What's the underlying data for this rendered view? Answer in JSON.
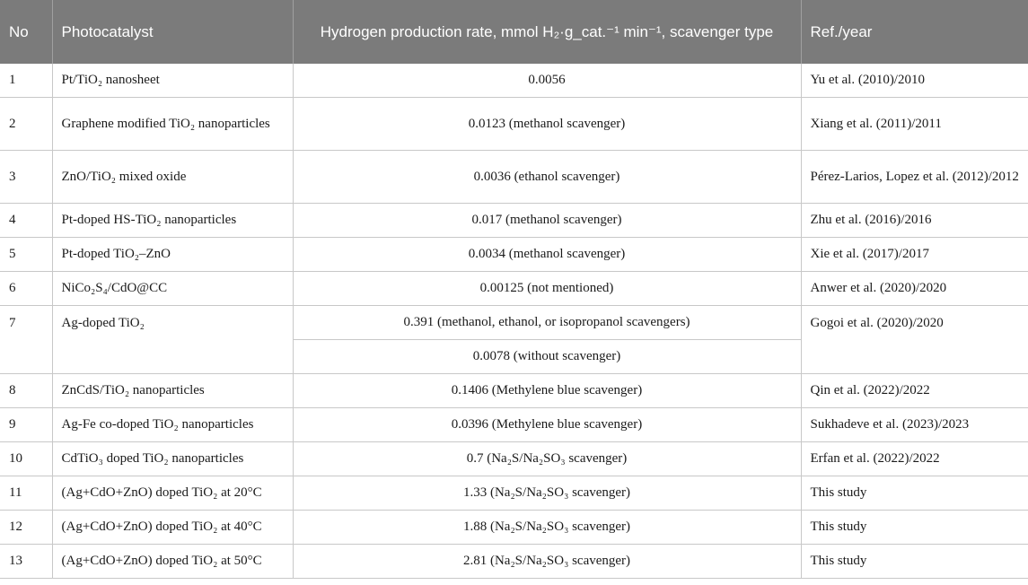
{
  "header": {
    "no": "No",
    "photocatalyst": "Photocatalyst",
    "rate": "Hydrogen production rate, mmol H₂·g_cat.⁻¹ min⁻¹, scavenger type",
    "ref": "Ref./year"
  },
  "rows": [
    {
      "no": "1",
      "photocatalyst": "Pt/TiO₂ nanosheet",
      "rate": "0.0056",
      "ref": "Yu et al. (2010)/2010"
    },
    {
      "no": "2",
      "photocatalyst": "Graphene modified TiO₂ nanoparticles",
      "rate": "0.0123 (methanol scavenger)",
      "ref": "Xiang et al. (2011)/2011"
    },
    {
      "no": "3",
      "photocatalyst": "ZnO/TiO₂ mixed oxide",
      "rate": "0.0036 (ethanol scavenger)",
      "ref": "Pérez-Larios, Lopez et al. (2012)/2012"
    },
    {
      "no": "4",
      "photocatalyst": "Pt-doped HS-TiO₂ nanoparticles",
      "rate": "0.017 (methanol scavenger)",
      "ref": "Zhu et al. (2016)/2016"
    },
    {
      "no": "5",
      "photocatalyst": "Pt-doped TiO₂–ZnO",
      "rate": "0.0034 (methanol scavenger)",
      "ref": "Xie et al. (2017)/2017"
    },
    {
      "no": "6",
      "photocatalyst": "NiCo₂S₄/CdO@CC",
      "rate": "0.00125 (not mentioned)",
      "ref": "Anwer et al. (2020)/2020"
    },
    {
      "no": "7",
      "photocatalyst": "Ag-doped TiO₂",
      "rate": "0.391 (methanol, ethanol, or isopropanol scavengers)",
      "rate2": "0.0078 (without scavenger)",
      "ref": "Gogoi et al. (2020)/2020"
    },
    {
      "no": "8",
      "photocatalyst": "ZnCdS/TiO₂ nanoparticles",
      "rate": "0.1406 (Methylene blue scavenger)",
      "ref": "Qin et al. (2022)/2022"
    },
    {
      "no": "9",
      "photocatalyst": "Ag-Fe co-doped TiO₂ nanoparticles",
      "rate": "0.0396 (Methylene blue scavenger)",
      "ref": "Sukhadeve et al. (2023)/2023"
    },
    {
      "no": "10",
      "photocatalyst": "CdTiO₃ doped TiO₂ nanoparticles",
      "rate": "0.7 (Na₂S/Na₂SO₃ scavenger)",
      "ref": "Erfan et al. (2022)/2022"
    },
    {
      "no": "11",
      "photocatalyst": "(Ag+CdO+ZnO) doped TiO₂ at 20°C",
      "rate": "1.33 (Na₂S/Na₂SO₃ scavenger)",
      "ref": "This study"
    },
    {
      "no": "12",
      "photocatalyst": "(Ag+CdO+ZnO) doped TiO₂ at 40°C",
      "rate": "1.88 (Na₂S/Na₂SO₃ scavenger)",
      "ref": "This study"
    },
    {
      "no": "13",
      "photocatalyst": "(Ag+CdO+ZnO) doped TiO₂ at 50°C",
      "rate": "2.81 (Na₂S/Na₂SO₃ scavenger)",
      "ref": "This study"
    }
  ]
}
